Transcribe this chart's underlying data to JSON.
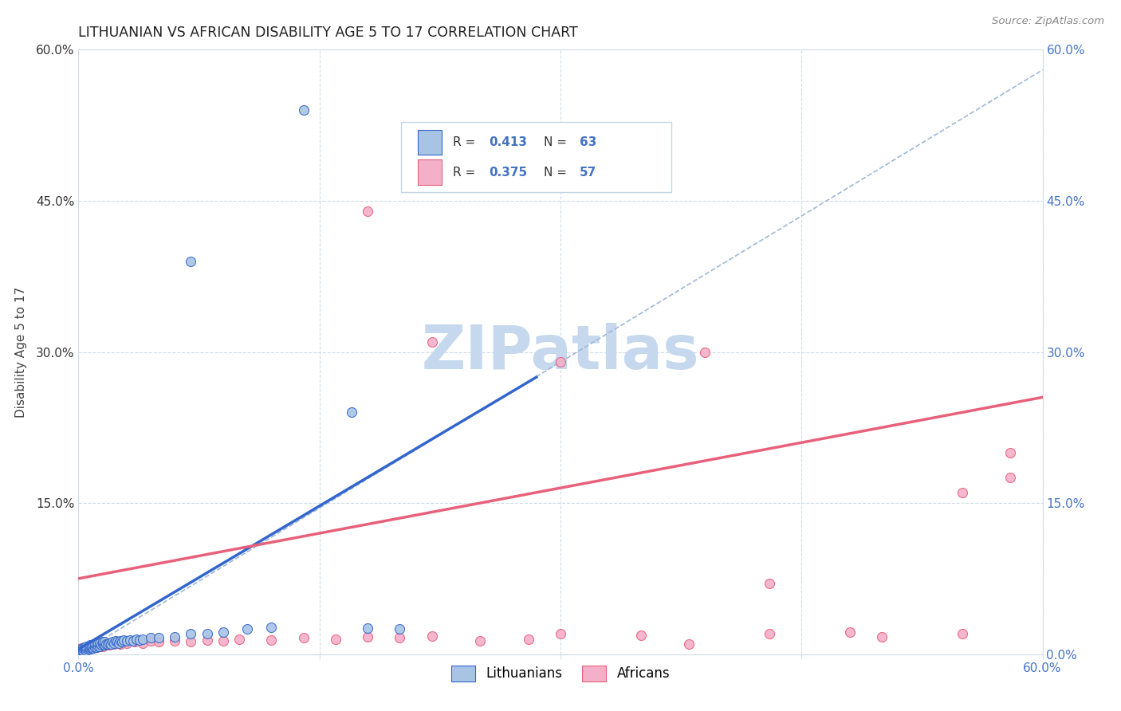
{
  "title": "LITHUANIAN VS AFRICAN DISABILITY AGE 5 TO 17 CORRELATION CHART",
  "source": "Source: ZipAtlas.com",
  "ylabel": "Disability Age 5 to 17",
  "xlim": [
    0.0,
    0.6
  ],
  "ylim": [
    0.0,
    0.6
  ],
  "color_lithuanian": "#a8c4e5",
  "color_african": "#f4b0c8",
  "line_color_lithuanian": "#3366cc",
  "line_color_african": "#e8607a",
  "dashed_line_color": "#a0b8d8",
  "watermark": "ZIPatlas",
  "watermark_color": "#c5d8ee",
  "background_color": "#ffffff",
  "grid_color": "#d0dce8",
  "title_color": "#222222",
  "axis_label_color": "#444444",
  "tick_color_blue": "#4472c4",
  "tick_color_dark": "#333333",
  "lith_line_x0": 0.0,
  "lith_line_y0": 0.005,
  "lith_line_x1": 0.285,
  "lith_line_y1": 0.275,
  "afr_line_x0": 0.0,
  "afr_line_y0": 0.075,
  "afr_line_x1": 0.6,
  "afr_line_y1": 0.255,
  "dash_line_x0": 0.0,
  "dash_line_y0": 0.0,
  "dash_line_x1": 0.6,
  "dash_line_y1": 0.58,
  "lith_x": [
    0.001,
    0.002,
    0.002,
    0.003,
    0.003,
    0.004,
    0.004,
    0.005,
    0.005,
    0.005,
    0.006,
    0.006,
    0.007,
    0.007,
    0.007,
    0.008,
    0.008,
    0.009,
    0.009,
    0.01,
    0.01,
    0.011,
    0.011,
    0.012,
    0.012,
    0.013,
    0.013,
    0.014,
    0.015,
    0.015,
    0.016,
    0.016,
    0.017,
    0.018,
    0.019,
    0.02,
    0.021,
    0.022,
    0.023,
    0.024,
    0.025,
    0.026,
    0.027,
    0.028,
    0.03,
    0.032,
    0.034,
    0.036,
    0.038,
    0.04,
    0.045,
    0.05,
    0.06,
    0.07,
    0.08,
    0.09,
    0.105,
    0.12,
    0.14,
    0.17,
    0.07,
    0.18,
    0.2
  ],
  "lith_y": [
    0.003,
    0.004,
    0.005,
    0.004,
    0.006,
    0.005,
    0.007,
    0.004,
    0.006,
    0.008,
    0.005,
    0.007,
    0.005,
    0.007,
    0.009,
    0.006,
    0.008,
    0.006,
    0.009,
    0.007,
    0.01,
    0.007,
    0.01,
    0.008,
    0.011,
    0.008,
    0.011,
    0.009,
    0.01,
    0.012,
    0.009,
    0.012,
    0.01,
    0.01,
    0.011,
    0.01,
    0.012,
    0.011,
    0.013,
    0.012,
    0.011,
    0.013,
    0.012,
    0.014,
    0.013,
    0.014,
    0.013,
    0.015,
    0.014,
    0.015,
    0.016,
    0.016,
    0.017,
    0.02,
    0.02,
    0.022,
    0.025,
    0.027,
    0.54,
    0.24,
    0.39,
    0.026,
    0.025
  ],
  "afr_x": [
    0.001,
    0.002,
    0.003,
    0.004,
    0.005,
    0.006,
    0.007,
    0.008,
    0.009,
    0.01,
    0.011,
    0.012,
    0.013,
    0.014,
    0.015,
    0.016,
    0.017,
    0.018,
    0.019,
    0.02,
    0.022,
    0.024,
    0.026,
    0.028,
    0.03,
    0.035,
    0.04,
    0.045,
    0.05,
    0.06,
    0.07,
    0.08,
    0.09,
    0.1,
    0.12,
    0.14,
    0.16,
    0.18,
    0.2,
    0.22,
    0.25,
    0.28,
    0.3,
    0.35,
    0.38,
    0.43,
    0.48,
    0.5,
    0.55,
    0.58,
    0.18,
    0.22,
    0.3,
    0.39,
    0.43,
    0.55,
    0.58
  ],
  "afr_y": [
    0.005,
    0.006,
    0.005,
    0.007,
    0.006,
    0.008,
    0.006,
    0.008,
    0.007,
    0.009,
    0.007,
    0.009,
    0.008,
    0.01,
    0.008,
    0.01,
    0.009,
    0.011,
    0.009,
    0.01,
    0.01,
    0.011,
    0.01,
    0.012,
    0.011,
    0.012,
    0.011,
    0.013,
    0.012,
    0.013,
    0.012,
    0.014,
    0.013,
    0.015,
    0.014,
    0.016,
    0.015,
    0.017,
    0.016,
    0.018,
    0.013,
    0.015,
    0.02,
    0.019,
    0.01,
    0.02,
    0.022,
    0.017,
    0.02,
    0.2,
    0.44,
    0.31,
    0.29,
    0.3,
    0.07,
    0.16,
    0.175
  ]
}
